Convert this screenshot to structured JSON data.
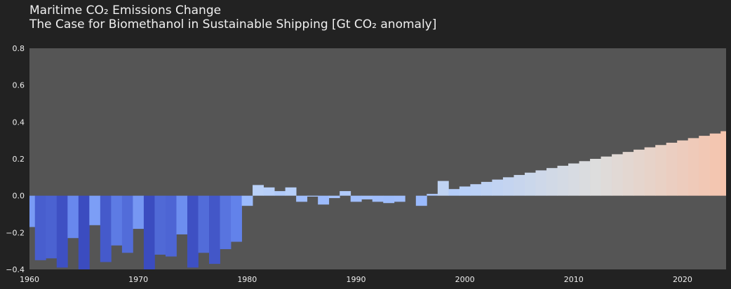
{
  "chart_data": {
    "type": "bar",
    "title": "Maritime CO₂ Emissions Change",
    "subtitle": "The Case for Biomethanol in Sustainable Shipping [Gt CO₂ anomaly]",
    "xlabel": "",
    "ylabel": "",
    "xlim": [
      1960,
      2024
    ],
    "ylim": [
      -0.4,
      0.8
    ],
    "grid": false,
    "legend": "none",
    "x_ticks": [
      "1960",
      "1970",
      "1980",
      "1990",
      "2000",
      "2010",
      "2020"
    ],
    "y_ticks": [
      "−0.4",
      "−0.2",
      "0.0",
      "0.2",
      "0.4",
      "0.6",
      "0.8"
    ],
    "x_tick_values": [
      1960,
      1970,
      1980,
      1990,
      2000,
      2010,
      2020
    ],
    "y_tick_values": [
      -0.4,
      -0.2,
      0.0,
      0.2,
      0.4,
      0.6,
      0.8
    ],
    "colormap": "coolwarm",
    "color_range": [
      -0.4,
      0.8
    ],
    "colors": {
      "background": "#222222",
      "plot_background": "#555555"
    },
    "years": [
      1960,
      1961,
      1962,
      1963,
      1964,
      1965,
      1966,
      1967,
      1968,
      1969,
      1970,
      1971,
      1972,
      1973,
      1974,
      1975,
      1976,
      1977,
      1978,
      1979,
      1980,
      1981,
      1982,
      1983,
      1984,
      1985,
      1986,
      1987,
      1988,
      1989,
      1990,
      1991,
      1992,
      1993,
      1994,
      1995,
      1996,
      1997,
      1998,
      1999,
      2000,
      2001,
      2002,
      2003,
      2004,
      2005,
      2006,
      2007,
      2008,
      2009,
      2010,
      2011,
      2012,
      2013,
      2014,
      2015,
      2016,
      2017,
      2018,
      2019,
      2020,
      2021,
      2022,
      2023,
      2024
    ],
    "values": [
      -0.17,
      -0.35,
      -0.34,
      -0.39,
      -0.23,
      -0.42,
      -0.16,
      -0.36,
      -0.27,
      -0.31,
      -0.18,
      -0.42,
      -0.32,
      -0.33,
      -0.21,
      -0.39,
      -0.31,
      -0.37,
      -0.29,
      -0.25,
      -0.055,
      0.058,
      0.045,
      0.025,
      0.045,
      -0.033,
      -0.005,
      -0.048,
      -0.013,
      0.025,
      -0.033,
      -0.02,
      -0.033,
      -0.04,
      -0.033,
      0.0,
      -0.055,
      0.01,
      0.08,
      0.036,
      0.05,
      0.0625,
      0.075,
      0.0875,
      0.1,
      0.1125,
      0.125,
      0.1375,
      0.15,
      0.1625,
      0.175,
      0.1875,
      0.2,
      0.2125,
      0.225,
      0.2375,
      0.25,
      0.2625,
      0.275,
      0.2875,
      0.3,
      0.3125,
      0.325,
      0.3375,
      0.35
    ]
  }
}
